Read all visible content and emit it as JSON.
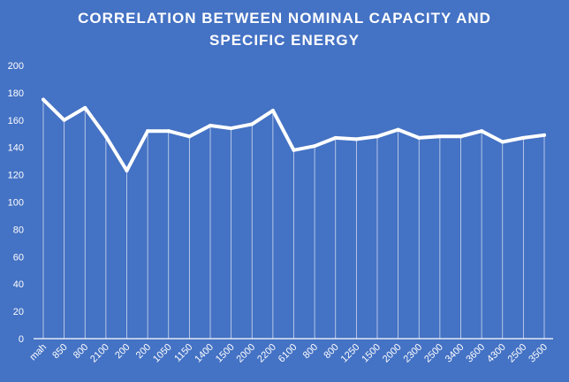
{
  "chart_data": {
    "type": "line",
    "title_lines": [
      "CORRELATION BETWEEN NOMINAL CAPACITY AND",
      "SPECIFIC ENERGY"
    ],
    "xlabel": "",
    "ylabel": "",
    "ylim": [
      0,
      200
    ],
    "yticks": [
      0,
      20,
      40,
      60,
      80,
      100,
      120,
      140,
      160,
      180,
      200
    ],
    "grid": "vertical",
    "legend": "none",
    "categories": [
      "mah",
      "850",
      "800",
      "2100",
      "200",
      "200",
      "1050",
      "1150",
      "1400",
      "1500",
      "2000",
      "2200",
      "6100",
      "800",
      "800",
      "1250",
      "1500",
      "2000",
      "2300",
      "2500",
      "3400",
      "3600",
      "4300",
      "2500",
      "3500"
    ],
    "series": [
      {
        "values": [
          175,
          160,
          169,
          148,
          123,
          152,
          152,
          148,
          156,
          154,
          157,
          167,
          138,
          141,
          147,
          146,
          148,
          153,
          147,
          148,
          148,
          152,
          144,
          147,
          149
        ],
        "color": "#ffffff"
      }
    ]
  }
}
